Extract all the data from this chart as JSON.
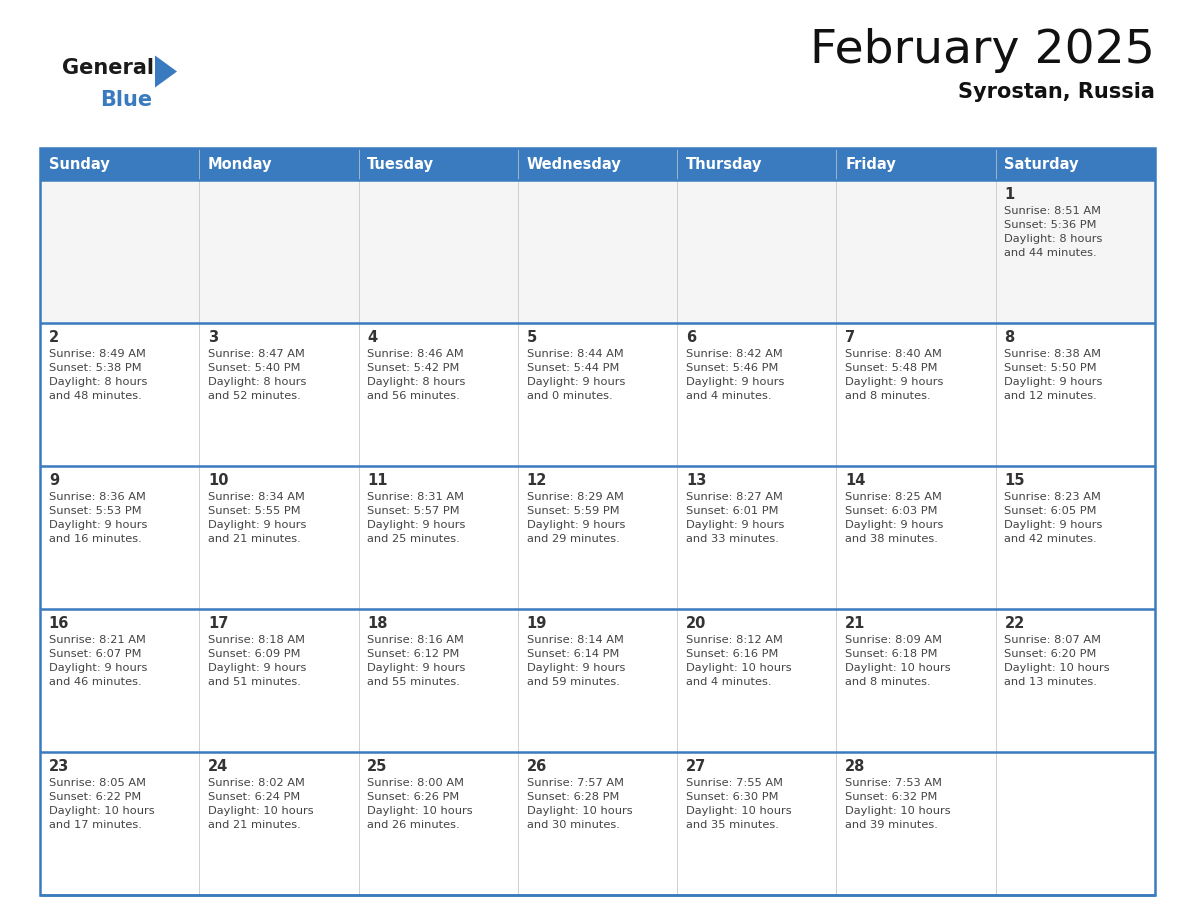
{
  "title": "February 2025",
  "subtitle": "Syrostan, Russia",
  "header_color": "#3a7bbf",
  "header_text_color": "#ffffff",
  "day_names": [
    "Sunday",
    "Monday",
    "Tuesday",
    "Wednesday",
    "Thursday",
    "Friday",
    "Saturday"
  ],
  "border_color": "#3a7bbf",
  "grid_color": "#cccccc",
  "sep_color": "#3a7bbf",
  "day_num_color": "#333333",
  "info_text_color": "#444444",
  "weeks": [
    [
      {
        "day": null,
        "info": ""
      },
      {
        "day": null,
        "info": ""
      },
      {
        "day": null,
        "info": ""
      },
      {
        "day": null,
        "info": ""
      },
      {
        "day": null,
        "info": ""
      },
      {
        "day": null,
        "info": ""
      },
      {
        "day": 1,
        "info": "Sunrise: 8:51 AM\nSunset: 5:36 PM\nDaylight: 8 hours\nand 44 minutes."
      }
    ],
    [
      {
        "day": 2,
        "info": "Sunrise: 8:49 AM\nSunset: 5:38 PM\nDaylight: 8 hours\nand 48 minutes."
      },
      {
        "day": 3,
        "info": "Sunrise: 8:47 AM\nSunset: 5:40 PM\nDaylight: 8 hours\nand 52 minutes."
      },
      {
        "day": 4,
        "info": "Sunrise: 8:46 AM\nSunset: 5:42 PM\nDaylight: 8 hours\nand 56 minutes."
      },
      {
        "day": 5,
        "info": "Sunrise: 8:44 AM\nSunset: 5:44 PM\nDaylight: 9 hours\nand 0 minutes."
      },
      {
        "day": 6,
        "info": "Sunrise: 8:42 AM\nSunset: 5:46 PM\nDaylight: 9 hours\nand 4 minutes."
      },
      {
        "day": 7,
        "info": "Sunrise: 8:40 AM\nSunset: 5:48 PM\nDaylight: 9 hours\nand 8 minutes."
      },
      {
        "day": 8,
        "info": "Sunrise: 8:38 AM\nSunset: 5:50 PM\nDaylight: 9 hours\nand 12 minutes."
      }
    ],
    [
      {
        "day": 9,
        "info": "Sunrise: 8:36 AM\nSunset: 5:53 PM\nDaylight: 9 hours\nand 16 minutes."
      },
      {
        "day": 10,
        "info": "Sunrise: 8:34 AM\nSunset: 5:55 PM\nDaylight: 9 hours\nand 21 minutes."
      },
      {
        "day": 11,
        "info": "Sunrise: 8:31 AM\nSunset: 5:57 PM\nDaylight: 9 hours\nand 25 minutes."
      },
      {
        "day": 12,
        "info": "Sunrise: 8:29 AM\nSunset: 5:59 PM\nDaylight: 9 hours\nand 29 minutes."
      },
      {
        "day": 13,
        "info": "Sunrise: 8:27 AM\nSunset: 6:01 PM\nDaylight: 9 hours\nand 33 minutes."
      },
      {
        "day": 14,
        "info": "Sunrise: 8:25 AM\nSunset: 6:03 PM\nDaylight: 9 hours\nand 38 minutes."
      },
      {
        "day": 15,
        "info": "Sunrise: 8:23 AM\nSunset: 6:05 PM\nDaylight: 9 hours\nand 42 minutes."
      }
    ],
    [
      {
        "day": 16,
        "info": "Sunrise: 8:21 AM\nSunset: 6:07 PM\nDaylight: 9 hours\nand 46 minutes."
      },
      {
        "day": 17,
        "info": "Sunrise: 8:18 AM\nSunset: 6:09 PM\nDaylight: 9 hours\nand 51 minutes."
      },
      {
        "day": 18,
        "info": "Sunrise: 8:16 AM\nSunset: 6:12 PM\nDaylight: 9 hours\nand 55 minutes."
      },
      {
        "day": 19,
        "info": "Sunrise: 8:14 AM\nSunset: 6:14 PM\nDaylight: 9 hours\nand 59 minutes."
      },
      {
        "day": 20,
        "info": "Sunrise: 8:12 AM\nSunset: 6:16 PM\nDaylight: 10 hours\nand 4 minutes."
      },
      {
        "day": 21,
        "info": "Sunrise: 8:09 AM\nSunset: 6:18 PM\nDaylight: 10 hours\nand 8 minutes."
      },
      {
        "day": 22,
        "info": "Sunrise: 8:07 AM\nSunset: 6:20 PM\nDaylight: 10 hours\nand 13 minutes."
      }
    ],
    [
      {
        "day": 23,
        "info": "Sunrise: 8:05 AM\nSunset: 6:22 PM\nDaylight: 10 hours\nand 17 minutes."
      },
      {
        "day": 24,
        "info": "Sunrise: 8:02 AM\nSunset: 6:24 PM\nDaylight: 10 hours\nand 21 minutes."
      },
      {
        "day": 25,
        "info": "Sunrise: 8:00 AM\nSunset: 6:26 PM\nDaylight: 10 hours\nand 26 minutes."
      },
      {
        "day": 26,
        "info": "Sunrise: 7:57 AM\nSunset: 6:28 PM\nDaylight: 10 hours\nand 30 minutes."
      },
      {
        "day": 27,
        "info": "Sunrise: 7:55 AM\nSunset: 6:30 PM\nDaylight: 10 hours\nand 35 minutes."
      },
      {
        "day": 28,
        "info": "Sunrise: 7:53 AM\nSunset: 6:32 PM\nDaylight: 10 hours\nand 39 minutes."
      },
      {
        "day": null,
        "info": ""
      }
    ]
  ],
  "logo_general_color": "#1a1a1a",
  "logo_blue_color": "#3a7bbf",
  "logo_tri_color": "#3a7bbf",
  "title_color": "#111111",
  "subtitle_color": "#111111",
  "bg_color": "#ffffff",
  "cell_bg": "#ffffff",
  "cell_bg_alt": "#f5f5f5"
}
